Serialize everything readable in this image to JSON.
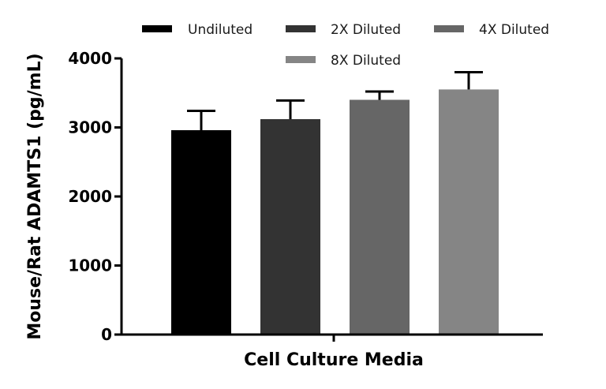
{
  "chart_data": {
    "type": "bar",
    "title": "",
    "xlabel": "Cell Culture Media",
    "ylabel": "Mouse/Rat ADAMTS1 (pg/mL)",
    "ylim": [
      0,
      4000
    ],
    "yticks": [
      0,
      1000,
      2000,
      3000,
      4000
    ],
    "yticks_text": [
      "0",
      "1000",
      "2000",
      "3000",
      "4000"
    ],
    "legend_position": "top",
    "series": [
      {
        "name": "Undiluted",
        "value": 2960,
        "error": 280,
        "color": "#000000"
      },
      {
        "name": "2X Diluted",
        "value": 3120,
        "error": 270,
        "color": "#333333"
      },
      {
        "name": "4X Diluted",
        "value": 3400,
        "error": 120,
        "color": "#666666"
      },
      {
        "name": "8X Diluted",
        "value": 3550,
        "error": 250,
        "color": "#858585"
      }
    ]
  }
}
